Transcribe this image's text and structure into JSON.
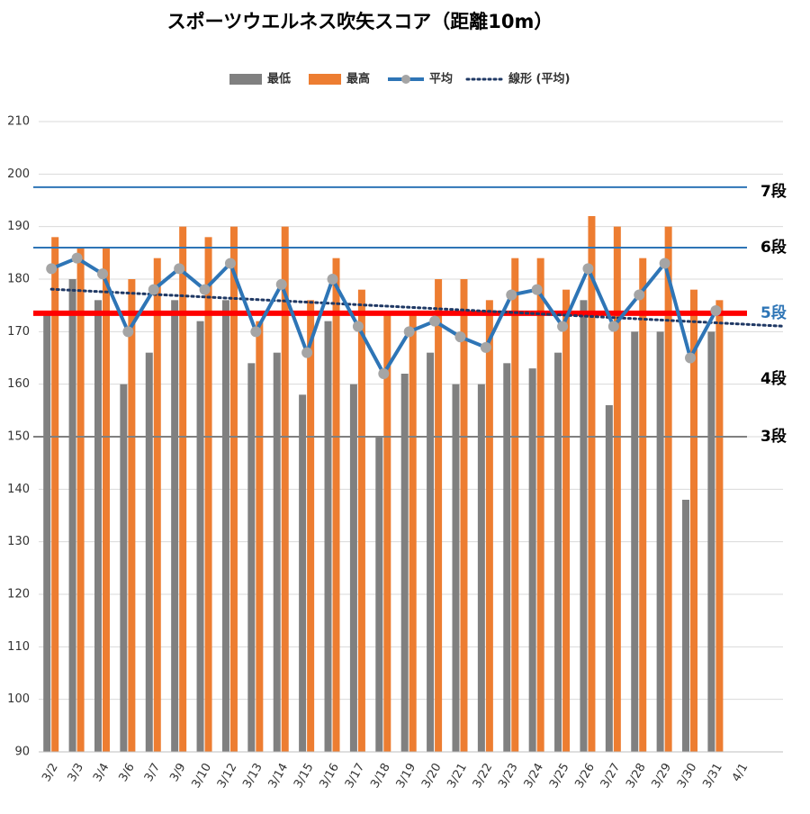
{
  "chart_data": {
    "type": "bar",
    "title": "スポーツウエルネス吹矢スコア（距離10m）",
    "categories": [
      "3/2",
      "3/3",
      "3/4",
      "3/6",
      "3/7",
      "3/9",
      "3/10",
      "3/12",
      "3/13",
      "3/14",
      "3/15",
      "3/16",
      "3/17",
      "3/18",
      "3/19",
      "3/20",
      "3/21",
      "3/22",
      "3/23",
      "3/24",
      "3/25",
      "3/26",
      "3/27",
      "3/28",
      "3/29",
      "3/30",
      "3/31",
      "4/1"
    ],
    "series": [
      {
        "name": "最低",
        "type": "bar",
        "color": "#808080",
        "values": [
          174,
          180,
          176,
          160,
          166,
          176,
          172,
          176,
          164,
          166,
          158,
          172,
          160,
          150,
          162,
          166,
          160,
          160,
          164,
          163,
          166,
          176,
          156,
          170,
          170,
          138,
          170,
          null
        ]
      },
      {
        "name": "最高",
        "type": "bar",
        "color": "#ed7d31",
        "values": [
          188,
          186,
          186,
          180,
          184,
          190,
          188,
          190,
          172,
          190,
          176,
          184,
          178,
          174,
          174,
          180,
          180,
          176,
          184,
          184,
          178,
          192,
          190,
          184,
          190,
          178,
          176,
          null
        ]
      },
      {
        "name": "平均",
        "type": "line",
        "color": "#2e75b6",
        "marker_color": "#a5a5a5",
        "values": [
          182,
          184,
          181,
          170,
          178,
          182,
          178,
          183,
          170,
          179,
          166,
          180,
          171,
          162,
          170,
          172,
          169,
          167,
          177,
          178,
          171,
          182,
          171,
          177,
          183,
          165,
          174,
          null
        ]
      }
    ],
    "trendline": {
      "name": "線形 (平均)",
      "of": 2,
      "color": "#1f3864"
    },
    "reference_lines": [
      {
        "label": "7段",
        "value": 197.5,
        "color": "#2e75b6",
        "label_color": "#000000",
        "width": 2
      },
      {
        "label": "6段",
        "value": 186,
        "color": "#2e75b6",
        "label_color": "#000000",
        "width": 2
      },
      {
        "label": "5段",
        "value": 173.5,
        "color": "#ff0000",
        "label_color": "#2e75b6",
        "width": 6
      },
      {
        "label": "4段",
        "value": 161,
        "color": null,
        "label_color": "#000000",
        "width": 0
      },
      {
        "label": "3段",
        "value": 150,
        "color": "#808080",
        "label_color": "#000000",
        "width": 2
      }
    ],
    "ylim": [
      90,
      210
    ],
    "yticks": [
      90,
      100,
      110,
      120,
      130,
      140,
      150,
      160,
      170,
      180,
      190,
      200,
      210
    ],
    "grid": true,
    "legend": "top"
  }
}
